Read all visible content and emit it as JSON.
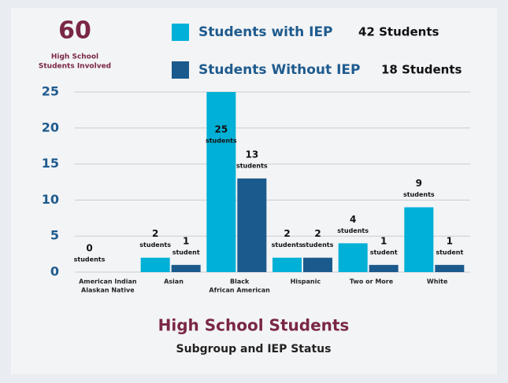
{
  "chart_data": {
    "type": "bar",
    "headline": "60",
    "headline_caption": [
      "High School",
      "Students Involved"
    ],
    "title": "High School Students",
    "subtitle": "Subgroup and IEP Status",
    "categories": [
      [
        "American Indian",
        "Alaskan Native"
      ],
      [
        "Asian"
      ],
      [
        "Black",
        "African American"
      ],
      [
        "Hispanic"
      ],
      [
        "Two or More"
      ],
      [
        "White"
      ]
    ],
    "series": [
      {
        "name": "Students with IEP",
        "total_label": "42 Students",
        "color": "#00b0d6",
        "values": [
          0,
          2,
          25,
          2,
          4,
          9
        ],
        "value_labels": [
          [
            "0",
            "students"
          ],
          [
            "2",
            "students"
          ],
          [
            "25",
            "students"
          ],
          [
            "2",
            "students"
          ],
          [
            "4",
            "students"
          ],
          [
            "9",
            "students"
          ]
        ]
      },
      {
        "name": "Students Without IEP",
        "total_label": "18 Students",
        "color": "#1b5a8c",
        "values": [
          0,
          1,
          13,
          2,
          1,
          1
        ],
        "value_labels": [
          null,
          [
            "1",
            "student"
          ],
          [
            "13",
            "students"
          ],
          [
            "2",
            "students"
          ],
          [
            "1",
            "student"
          ],
          [
            "1",
            "student"
          ]
        ]
      }
    ],
    "ylim": [
      0,
      25
    ],
    "yticks": [
      0,
      5,
      10,
      15,
      20,
      25
    ],
    "grid": true
  }
}
